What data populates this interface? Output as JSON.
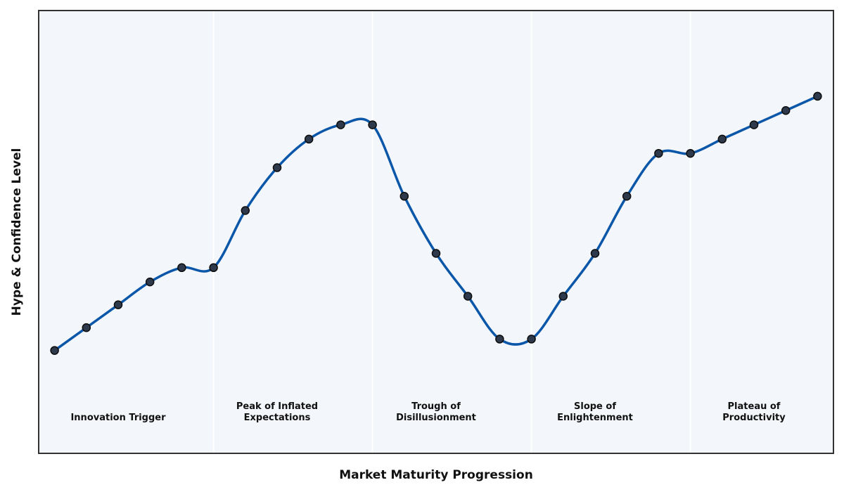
{
  "chart_data": {
    "type": "line",
    "xlabel": "Market Maturity Progression",
    "ylabel": "Hype & Confidence Level",
    "xlim": [
      -0.5,
      24.5
    ],
    "ylim": [
      0,
      310
    ],
    "grid": false,
    "smooth": true,
    "x": [
      0,
      1,
      2,
      3,
      4,
      5,
      6,
      7,
      8,
      9,
      10,
      11,
      12,
      13,
      14,
      15,
      16,
      17,
      18,
      19,
      20,
      21,
      22,
      23,
      24
    ],
    "y": [
      72,
      88,
      104,
      120,
      130,
      130,
      170,
      200,
      220,
      230,
      230,
      180,
      140,
      110,
      80,
      80,
      110,
      140,
      180,
      210,
      210,
      220,
      230,
      240,
      250
    ],
    "phases": [
      {
        "label": [
          "Innovation Trigger"
        ],
        "start": -0.5,
        "end": 5,
        "label_x": 2
      },
      {
        "label": [
          "Peak of Inflated",
          "Expectations"
        ],
        "start": 5,
        "end": 10,
        "label_x": 7
      },
      {
        "label": [
          "Trough of",
          "Disillusionment"
        ],
        "start": 10,
        "end": 15,
        "label_x": 12
      },
      {
        "label": [
          "Slope of",
          "Enlightenment"
        ],
        "start": 15,
        "end": 20,
        "label_x": 17
      },
      {
        "label": [
          "Plateau of",
          "Productivity"
        ],
        "start": 20,
        "end": 24.5,
        "label_x": 22
      }
    ],
    "phase_label_y": 25,
    "colors": {
      "line": "#0a56a8",
      "marker_fill": "#2e3a4c",
      "marker_edge": "#0d0d0d",
      "plot_background": "#f3f6fa",
      "divider": "#ffffff",
      "frame": "#333333"
    }
  }
}
